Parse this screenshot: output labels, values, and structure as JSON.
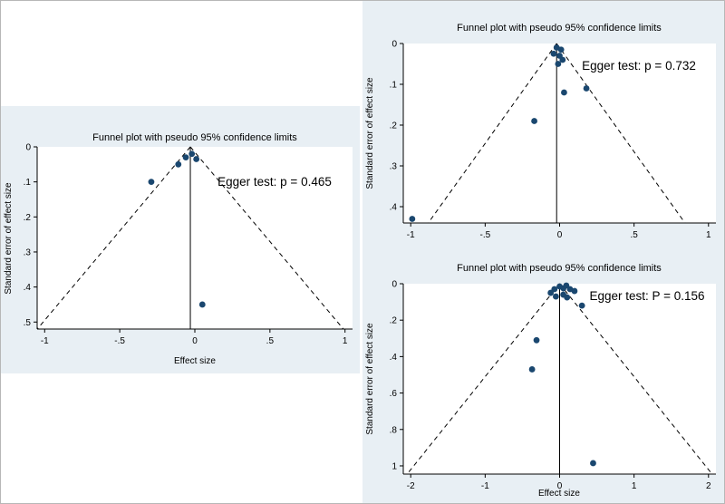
{
  "colors": {
    "panel_bg": "#e8eff4",
    "plot_bg": "#ffffff",
    "point": "#1a476f",
    "line": "#000000"
  },
  "chart_data": [
    {
      "type": "scatter",
      "title": "Funnel plot with pseudo 95% confidence limits",
      "annotation": "Egger test: p = 0.465",
      "xlabel": "Effect size",
      "ylabel": "Standard error of effect size",
      "xlim": [
        -1.05,
        1.05
      ],
      "ylim": [
        0,
        0.52
      ],
      "y_axis_reversed": true,
      "grid": false,
      "legend": "none",
      "xticks": {
        "values": [
          -1,
          -0.5,
          0,
          0.5,
          1
        ],
        "labels": [
          "-1",
          "-.5",
          "0",
          ".5",
          "1"
        ]
      },
      "yticks": {
        "values": [
          0,
          0.1,
          0.2,
          0.3,
          0.4,
          0.5
        ],
        "labels": [
          "0",
          ".1",
          ".2",
          ".3",
          ".4",
          ".5"
        ]
      },
      "center": -0.03,
      "funnel_multiplier": 1.96,
      "points": [
        [
          -0.29,
          0.1
        ],
        [
          -0.11,
          0.05
        ],
        [
          -0.06,
          0.03
        ],
        [
          -0.02,
          0.02
        ],
        [
          0.01,
          0.035
        ],
        [
          0.05,
          0.45
        ]
      ]
    },
    {
      "type": "scatter",
      "title": "Funnel plot with pseudo 95% confidence limits",
      "annotation": "Egger test: p = 0.732",
      "xlabel": "",
      "ylabel": "Standard error of effect size",
      "xlim": [
        -1.05,
        1.05
      ],
      "ylim": [
        0,
        0.44
      ],
      "y_axis_reversed": true,
      "grid": false,
      "legend": "none",
      "xticks": {
        "values": [
          -1,
          -0.5,
          0,
          0.5,
          1
        ],
        "labels": [
          "-1",
          "-.5",
          "0",
          ".5",
          "1"
        ]
      },
      "yticks": {
        "values": [
          0,
          0.1,
          0.2,
          0.3,
          0.4
        ],
        "labels": [
          "0",
          ".1",
          ".2",
          ".3",
          ".4"
        ]
      },
      "center": -0.02,
      "funnel_multiplier": 1.96,
      "points": [
        [
          -0.99,
          0.43
        ],
        [
          -0.17,
          0.19
        ],
        [
          0.03,
          0.12
        ],
        [
          0.18,
          0.11
        ],
        [
          -0.02,
          0.01
        ],
        [
          0.01,
          0.015
        ],
        [
          -0.04,
          0.025
        ],
        [
          0.0,
          0.03
        ],
        [
          0.02,
          0.04
        ],
        [
          -0.01,
          0.05
        ]
      ]
    },
    {
      "type": "scatter",
      "title": "Funnel plot with pseudo 95% confidence limits",
      "annotation": "Egger test: P = 0.156",
      "xlabel": "Effect size",
      "ylabel": "Standard error of effect size",
      "xlim": [
        -2.1,
        2.1
      ],
      "ylim": [
        0,
        1.045
      ],
      "y_axis_reversed": true,
      "grid": false,
      "legend": "none",
      "xticks": {
        "values": [
          -2,
          -1,
          0,
          1,
          2
        ],
        "labels": [
          "-2",
          "-1",
          "0",
          "1",
          "2"
        ]
      },
      "yticks": {
        "values": [
          0,
          0.2,
          0.4,
          0.6,
          0.8,
          1
        ],
        "labels": [
          "0",
          ".2",
          ".4",
          ".6",
          ".8",
          "1"
        ]
      },
      "center": 0.0,
      "funnel_multiplier": 1.96,
      "points": [
        [
          -0.07,
          0.03
        ],
        [
          0.0,
          0.015
        ],
        [
          0.05,
          0.025
        ],
        [
          0.09,
          0.01
        ],
        [
          0.14,
          0.03
        ],
        [
          0.2,
          0.04
        ],
        [
          0.05,
          0.06
        ],
        [
          -0.05,
          0.07
        ],
        [
          0.1,
          0.075
        ],
        [
          -0.12,
          0.05
        ],
        [
          0.3,
          0.12
        ],
        [
          -0.31,
          0.31
        ],
        [
          -0.37,
          0.47
        ],
        [
          0.45,
          0.985
        ]
      ]
    }
  ]
}
